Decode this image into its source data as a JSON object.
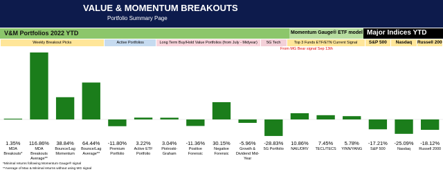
{
  "chart_data": {
    "type": "bar",
    "title": "VALUE & MOMENTUM BREAKOUTS",
    "subtitle": "Portfolio Summary Page",
    "section_title": "V&M Portfolios 2022 YTD",
    "model_label": "Momentum Gauge® ETF model",
    "indices_title": "Major Indices YTD",
    "column_groups": [
      "Weekly Breakout Picks",
      "Active Portfolios",
      "Long Term Buy/Hold Value Portfolios (from July - Midyear)",
      "5G Tech",
      "Top 3 Funds ETF/ETN Current Signal",
      "S&P 500",
      "Nasdaq",
      "Russell 2000"
    ],
    "annotation": "From MG Bear signal Sep 13th",
    "categories": [
      "MDA Breakouts*",
      "MDA Breakouts Average**",
      "Bounce/Lag Momentum",
      "Bounce/Lag Average**",
      "Premium Portfolio",
      "Active ETF Portfolio",
      "Piotroski-Graham",
      "Positive Forensic",
      "Negative Forensic",
      "Growth & Dividend Mid-Year",
      "5G Portfolio",
      "NAIL/DRV",
      "TECL/TECS",
      "YINN/YANG",
      "S&P 500",
      "Nasdaq",
      "Russell 2000"
    ],
    "values": [
      1.35,
      116.86,
      38.84,
      64.44,
      -11.8,
      3.22,
      3.04,
      -11.36,
      30.15,
      -5.96,
      -28.83,
      10.86,
      7.45,
      5.78,
      -17.21,
      -25.09,
      -18.12
    ],
    "value_labels": [
      "1.35%",
      "116.86%",
      "38.84%",
      "64.44%",
      "-11.80%",
      "3.22%",
      "3.04%",
      "-11.36%",
      "30.15%",
      "-5.96%",
      "-28.83%",
      "10.86%",
      "7.45%",
      "5.78%",
      "-17.21%",
      "-25.09%",
      "-18.12%"
    ],
    "color": "#1b7d1b",
    "footnotes": [
      "*Minimal returns following Momentum Gauge® signal",
      "**Average of Max & Minimal returns without using MG signal"
    ]
  }
}
